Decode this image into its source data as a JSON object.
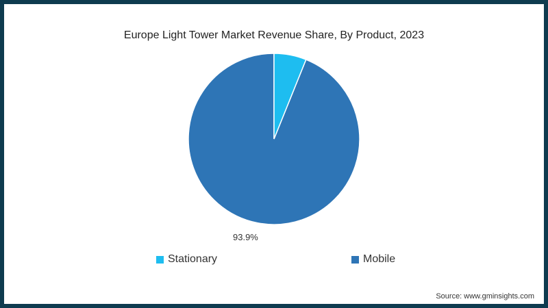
{
  "chart_data": {
    "type": "pie",
    "title": "Europe Light Tower Market Revenue Share, By Product, 2023",
    "categories": [
      "Stationary",
      "Mobile"
    ],
    "values": [
      6.1,
      93.9
    ],
    "colors": [
      "#1ebdf0",
      "#2e75b6"
    ],
    "data_labels": [
      "",
      "93.9%"
    ],
    "legend_position": "bottom",
    "start_angle_deg": 0,
    "direction": "clockwise"
  },
  "title": "Europe Light Tower Market Revenue Share, By Product, 2023",
  "label_mobile": "93.9%",
  "legend": [
    {
      "label": "Stationary",
      "color": "#1ebdf0"
    },
    {
      "label": "Mobile",
      "color": "#2e75b6"
    }
  ],
  "source": "Source: www.gminsights.com"
}
